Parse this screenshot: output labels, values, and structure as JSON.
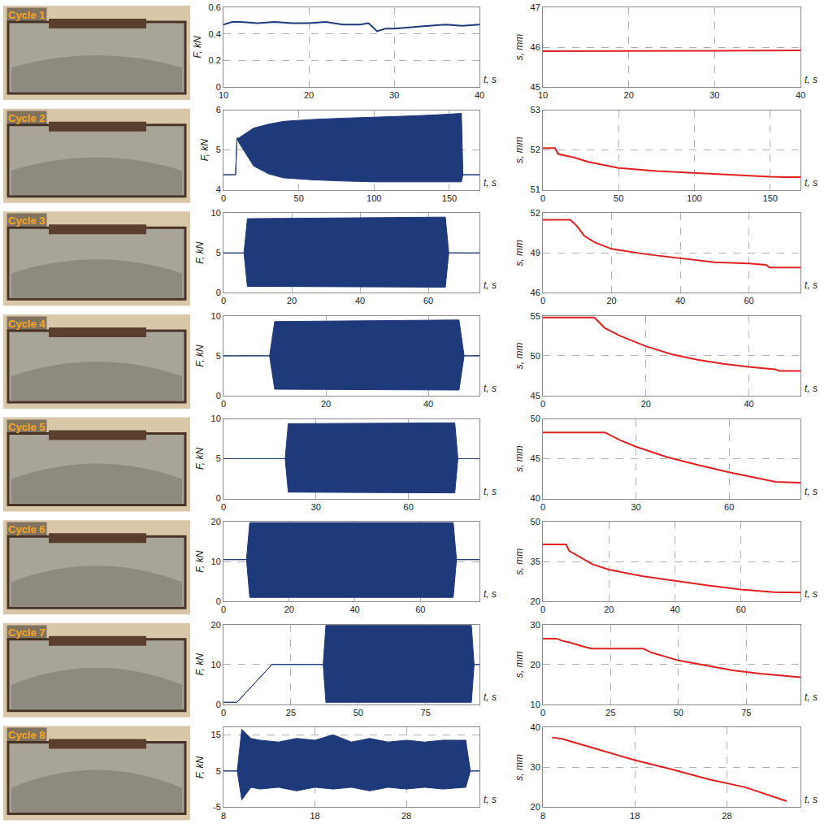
{
  "photo_labels": [
    "Cycle 1",
    "Cycle 2",
    "Cycle 3",
    "Cycle 4",
    "Cycle 5",
    "Cycle 6",
    "Cycle 7",
    "Cycle 8"
  ],
  "chart_data": [
    {
      "type": "line",
      "x": [
        10,
        11,
        12,
        14,
        16,
        18,
        20,
        22,
        24,
        26,
        27,
        28,
        29,
        30,
        32,
        34,
        36,
        38,
        40
      ],
      "series": [
        {
          "color": "#1f3a7a",
          "values": [
            0.47,
            0.49,
            0.49,
            0.48,
            0.49,
            0.48,
            0.48,
            0.49,
            0.47,
            0.47,
            0.48,
            0.42,
            0.44,
            0.44,
            0.45,
            0.46,
            0.47,
            0.46,
            0.47
          ]
        }
      ],
      "xlim": [
        10,
        40
      ],
      "xticks": [
        10,
        20,
        30,
        40
      ],
      "ylim": [
        0,
        0.6
      ],
      "yticks": [
        0,
        0.2,
        0.4,
        0.6
      ],
      "xlabel": "t, s",
      "ylabel": "F, kN",
      "grid": true
    },
    {
      "type": "line",
      "x": [
        10,
        20,
        30,
        40
      ],
      "series": [
        {
          "color": "#e02020",
          "values": [
            45.9,
            45.9,
            45.91,
            45.92
          ]
        }
      ],
      "xlim": [
        10,
        40
      ],
      "xticks": [
        10,
        20,
        30,
        40
      ],
      "ylim": [
        45,
        47
      ],
      "yticks": [
        45,
        46,
        47
      ],
      "xlabel": "t, s",
      "ylabel": "s, mm",
      "grid": true
    },
    {
      "type": "area",
      "x": [
        0,
        8,
        9,
        10,
        20,
        30,
        40,
        60,
        80,
        100,
        120,
        140,
        158,
        159,
        170
      ],
      "series": [
        {
          "color": "#1f3a7a",
          "values": [
            4.38,
            4.38,
            5.3,
            5.2,
            4.6,
            4.4,
            4.3,
            4.25,
            4.22,
            4.2,
            4.2,
            4.2,
            4.2,
            4.38,
            4.38
          ]
        },
        {
          "color": "#1f3a7a",
          "values": [
            4.38,
            4.38,
            5.3,
            5.3,
            5.55,
            5.65,
            5.72,
            5.77,
            5.8,
            5.82,
            5.85,
            5.88,
            5.92,
            4.38,
            4.38
          ]
        }
      ],
      "xlim": [
        0,
        170
      ],
      "xticks": [
        0,
        50,
        100,
        150
      ],
      "ylim": [
        4,
        6
      ],
      "yticks": [
        4,
        5,
        6
      ],
      "xlabel": "t, s",
      "ylabel": "F, kN",
      "grid": true
    },
    {
      "type": "line",
      "x": [
        0,
        8,
        10,
        20,
        30,
        50,
        75,
        100,
        125,
        150,
        160,
        170
      ],
      "series": [
        {
          "color": "#e02020",
          "values": [
            52.05,
            52.05,
            51.9,
            51.82,
            51.7,
            51.55,
            51.47,
            51.42,
            51.37,
            51.33,
            51.32,
            51.32
          ]
        }
      ],
      "xlim": [
        0,
        170
      ],
      "xticks": [
        0,
        50,
        100,
        150
      ],
      "ylim": [
        51,
        53
      ],
      "yticks": [
        51,
        52,
        53
      ],
      "xlabel": "t, s",
      "ylabel": "s, mm",
      "grid": true
    },
    {
      "type": "area",
      "x": [
        0,
        6,
        7,
        65,
        66,
        75
      ],
      "series": [
        {
          "color": "#1f3a7a",
          "values": [
            5,
            5,
            0.8,
            0.7,
            5,
            5
          ]
        },
        {
          "color": "#1f3a7a",
          "values": [
            5,
            5,
            9.3,
            9.5,
            5,
            5
          ]
        }
      ],
      "xlim": [
        0,
        75
      ],
      "xticks": [
        0,
        20,
        40,
        60
      ],
      "ylim": [
        0,
        10
      ],
      "yticks": [
        0,
        5,
        10
      ],
      "xlabel": "t, s",
      "ylabel": "F, kN",
      "grid": true
    },
    {
      "type": "line",
      "x": [
        0,
        8,
        10,
        12,
        15,
        20,
        30,
        40,
        50,
        60,
        65,
        66,
        75
      ],
      "series": [
        {
          "color": "#e02020",
          "values": [
            51.5,
            51.5,
            51.0,
            50.3,
            49.8,
            49.3,
            48.9,
            48.6,
            48.3,
            48.2,
            48.1,
            47.9,
            47.9
          ]
        }
      ],
      "xlim": [
        0,
        75
      ],
      "xticks": [
        0,
        20,
        40,
        60
      ],
      "ylim": [
        46,
        52
      ],
      "yticks": [
        46,
        49,
        52
      ],
      "xlabel": "t, s",
      "ylabel": "s, mm",
      "grid": true
    },
    {
      "type": "area",
      "x": [
        0,
        9,
        10,
        46,
        47,
        50
      ],
      "series": [
        {
          "color": "#1f3a7a",
          "values": [
            5,
            5,
            0.8,
            0.7,
            5,
            5
          ]
        },
        {
          "color": "#1f3a7a",
          "values": [
            5,
            5,
            9.3,
            9.5,
            5,
            5
          ]
        }
      ],
      "xlim": [
        0,
        50
      ],
      "xticks": [
        0,
        20,
        40
      ],
      "ylim": [
        0,
        10
      ],
      "yticks": [
        0,
        5,
        10
      ],
      "xlabel": "t, s",
      "ylabel": "F, kN",
      "grid": true
    },
    {
      "type": "line",
      "x": [
        0,
        10,
        12,
        15,
        20,
        25,
        30,
        35,
        40,
        45,
        46,
        50
      ],
      "series": [
        {
          "color": "#e02020",
          "values": [
            54.8,
            54.8,
            53.5,
            52.5,
            51.2,
            50.2,
            49.5,
            49.0,
            48.6,
            48.3,
            48.1,
            48.1
          ]
        }
      ],
      "xlim": [
        0,
        50
      ],
      "xticks": [
        0,
        20,
        40
      ],
      "ylim": [
        45,
        55
      ],
      "yticks": [
        45,
        50,
        55
      ],
      "xlabel": "t, s",
      "ylabel": "s, mm",
      "grid": true
    },
    {
      "type": "area",
      "x": [
        0,
        20,
        21,
        75,
        76,
        83
      ],
      "series": [
        {
          "color": "#1f3a7a",
          "values": [
            5,
            5,
            0.8,
            0.7,
            5,
            5
          ]
        },
        {
          "color": "#1f3a7a",
          "values": [
            5,
            5,
            9.4,
            9.5,
            5,
            5
          ]
        }
      ],
      "xlim": [
        0,
        83
      ],
      "xticks": [
        0,
        30,
        60
      ],
      "ylim": [
        0,
        10
      ],
      "yticks": [
        0,
        5,
        10
      ],
      "xlabel": "t, s",
      "ylabel": "F, kN",
      "grid": true
    },
    {
      "type": "line",
      "x": [
        0,
        20,
        25,
        30,
        40,
        50,
        60,
        70,
        75,
        83
      ],
      "series": [
        {
          "color": "#e02020",
          "values": [
            48.3,
            48.3,
            47.3,
            46.5,
            45.2,
            44.2,
            43.3,
            42.5,
            42.1,
            42.0
          ]
        }
      ],
      "xlim": [
        0,
        83
      ],
      "xticks": [
        0,
        30,
        60
      ],
      "ylim": [
        40,
        50
      ],
      "yticks": [
        40,
        45,
        50
      ],
      "xlabel": "t, s",
      "ylabel": "s, mm",
      "grid": true
    },
    {
      "type": "area",
      "x": [
        0,
        7,
        8,
        70,
        71,
        78
      ],
      "series": [
        {
          "color": "#1f3a7a",
          "values": [
            10.5,
            10.5,
            1.0,
            1.0,
            10.5,
            10.5
          ]
        },
        {
          "color": "#1f3a7a",
          "values": [
            10.5,
            10.5,
            19.8,
            19.8,
            10.5,
            10.5
          ]
        }
      ],
      "xlim": [
        0,
        78
      ],
      "xticks": [
        0,
        20,
        40,
        60
      ],
      "ylim": [
        0,
        20
      ],
      "yticks": [
        0,
        10,
        20
      ],
      "xlabel": "t, s",
      "ylabel": "F, kN",
      "grid": true
    },
    {
      "type": "line",
      "x": [
        0,
        7,
        8,
        10,
        15,
        20,
        30,
        40,
        50,
        60,
        70,
        78
      ],
      "series": [
        {
          "color": "#e02020",
          "values": [
            41.5,
            41.5,
            39,
            37.5,
            34,
            32,
            29.5,
            27.8,
            26,
            24.5,
            23.5,
            23.3
          ]
        }
      ],
      "xlim": [
        0,
        78
      ],
      "xticks": [
        0,
        20,
        40,
        60
      ],
      "ylim": [
        20,
        50
      ],
      "yticks": [
        20,
        35,
        50
      ],
      "xlabel": "t, s",
      "ylabel": "s, mm",
      "grid": true
    },
    {
      "type": "area",
      "x": [
        0,
        5,
        18,
        37,
        38,
        92,
        93,
        95
      ],
      "series": [
        {
          "color": "#1f3a7a",
          "values": [
            0.5,
            0.5,
            10,
            10,
            0.5,
            0.5,
            10,
            10
          ]
        },
        {
          "color": "#1f3a7a",
          "values": [
            0.5,
            0.5,
            10,
            10,
            19.8,
            19.8,
            10,
            10
          ]
        }
      ],
      "xlim": [
        0,
        95
      ],
      "xticks": [
        0,
        25,
        50,
        75
      ],
      "ylim": [
        0,
        20
      ],
      "yticks": [
        0,
        10,
        20
      ],
      "xlabel": "t, s",
      "ylabel": "F, kN",
      "grid": true
    },
    {
      "type": "line",
      "x": [
        0,
        5,
        7,
        10,
        15,
        18,
        37,
        40,
        50,
        60,
        70,
        80,
        90,
        95
      ],
      "series": [
        {
          "color": "#e02020",
          "values": [
            26.5,
            26.5,
            26,
            25.5,
            24.5,
            24,
            24,
            23,
            21,
            19.7,
            18.5,
            17.7,
            17,
            16.8
          ]
        }
      ],
      "xlim": [
        0,
        95
      ],
      "xticks": [
        0,
        25,
        50,
        75
      ],
      "ylim": [
        10,
        30
      ],
      "yticks": [
        10,
        20,
        30
      ],
      "xlabel": "t, s",
      "ylabel": "s, mm",
      "grid": true
    },
    {
      "type": "area",
      "x": [
        8,
        9.5,
        10,
        11,
        12,
        14,
        16,
        18,
        20,
        22,
        24,
        26,
        28,
        30,
        32,
        34.5,
        35,
        36
      ],
      "series": [
        {
          "color": "#1f3a7a",
          "values": [
            5,
            5,
            -3,
            0.5,
            0,
            0.5,
            -0.5,
            0.5,
            0,
            0.5,
            -0.5,
            0.5,
            0,
            0.5,
            0,
            0.5,
            5,
            5
          ]
        },
        {
          "color": "#1f3a7a",
          "values": [
            5,
            5,
            16.5,
            14,
            13.5,
            13,
            14,
            13.5,
            15,
            13,
            14,
            13,
            13.5,
            13,
            13.5,
            13.5,
            5,
            5
          ]
        }
      ],
      "xlim": [
        8,
        36
      ],
      "xticks": [
        8,
        18,
        28
      ],
      "ylim": [
        -5,
        17
      ],
      "yticks": [
        -5,
        5,
        15
      ],
      "xlabel": "t, s",
      "ylabel": "F, kN",
      "grid": true
    },
    {
      "type": "line",
      "x": [
        9,
        10,
        14,
        18,
        22,
        26,
        30,
        34.5
      ],
      "series": [
        {
          "color": "#e02020",
          "values": [
            37.5,
            37.2,
            34.5,
            31.8,
            29.5,
            27,
            25,
            21.5
          ]
        }
      ],
      "xlim": [
        8,
        36
      ],
      "xticks": [
        8,
        18,
        28
      ],
      "ylim": [
        20,
        40
      ],
      "yticks": [
        20,
        30,
        40
      ],
      "xlabel": "t, s",
      "ylabel": "s, mm",
      "grid": true
    }
  ]
}
